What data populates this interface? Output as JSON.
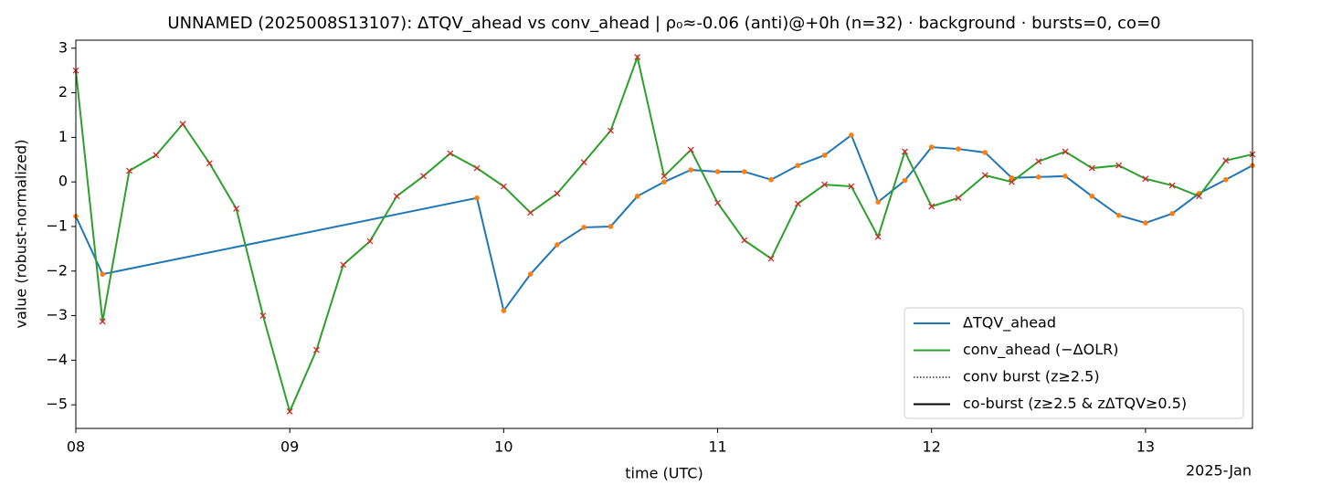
{
  "chart_data": {
    "type": "line",
    "title": "UNNAMED (2025008S13107): ΔTQV_ahead vs conv_ahead | ρ₀≈-0.06 (anti)@+0h (n=32) · background · bursts=0, co=0",
    "x_label": "time (UTC)",
    "y_label": "value (robust-normalized)",
    "x_offset_label": "2025-Jan",
    "xlim": [
      8,
      13.5
    ],
    "xticks": [
      {
        "value": 8,
        "label": "08"
      },
      {
        "value": 9,
        "label": "09"
      },
      {
        "value": 10,
        "label": "10"
      },
      {
        "value": 11,
        "label": "11"
      },
      {
        "value": 12,
        "label": "12"
      },
      {
        "value": 13,
        "label": "13"
      }
    ],
    "ylim": [
      -5.53,
      3.18
    ],
    "yticks": [
      {
        "value": -5,
        "label": "−5"
      },
      {
        "value": -4,
        "label": "−4"
      },
      {
        "value": -3,
        "label": "−3"
      },
      {
        "value": -2,
        "label": "−2"
      },
      {
        "value": -1,
        "label": "−1"
      },
      0,
      1,
      2,
      3
    ],
    "grid": false,
    "legend": "lower right",
    "series": [
      {
        "name": "ΔTQV_ahead",
        "color": "#1f77b4",
        "marker": "dot",
        "marker_color": "#ff7f0e",
        "x": [
          8.0,
          8.125,
          9.875,
          10.0,
          10.125,
          10.25,
          10.375,
          10.5,
          10.625,
          10.75,
          10.875,
          11.0,
          11.125,
          11.25,
          11.375,
          11.5,
          11.625,
          11.75,
          11.875,
          12.0,
          12.125,
          12.25,
          12.375,
          12.5,
          12.625,
          12.75,
          12.875,
          13.0,
          13.125,
          13.25,
          13.375,
          13.5
        ],
        "values": [
          -0.77,
          -2.07,
          -0.36,
          -2.89,
          -2.07,
          -1.41,
          -1.02,
          -1.0,
          -0.32,
          0,
          0.27,
          0.23,
          0.23,
          0.05,
          0.37,
          0.6,
          1.05,
          -0.45,
          0.03,
          0.78,
          0.74,
          0.66,
          0.09,
          0.11,
          0.13,
          -0.32,
          -0.75,
          -0.92,
          -0.71,
          -0.26,
          0.05,
          0.37
        ]
      },
      {
        "name": "conv_ahead (−ΔOLR)",
        "color": "#2ca02c",
        "marker": "x",
        "marker_color": "#d62728",
        "x": [
          8.0,
          8.125,
          8.25,
          8.375,
          8.5,
          8.625,
          8.75,
          8.875,
          9.0,
          9.125,
          9.25,
          9.375,
          9.5,
          9.625,
          9.75,
          9.875,
          10.0,
          10.125,
          10.25,
          10.375,
          10.5,
          10.625,
          10.75,
          10.875,
          11.0,
          11.125,
          11.25,
          11.375,
          11.5,
          11.625,
          11.75,
          11.875,
          12.0,
          12.125,
          12.25,
          12.375,
          12.5,
          12.625,
          12.75,
          12.875,
          13.0,
          13.125,
          13.25,
          13.375,
          13.5
        ],
        "values": [
          2.5,
          -3.13,
          0.25,
          0.6,
          1.3,
          0.42,
          -0.6,
          -3.0,
          -5.15,
          -3.77,
          -1.86,
          -1.33,
          -0.32,
          0.13,
          0.64,
          0.31,
          -0.1,
          -0.69,
          -0.26,
          0.44,
          1.15,
          2.8,
          0.13,
          0.72,
          -0.47,
          -1.31,
          -1.72,
          -0.49,
          -0.06,
          -0.1,
          -1.23,
          0.68,
          -0.55,
          -0.36,
          0.15,
          0,
          0.46,
          0.68,
          0.31,
          0.37,
          0.07,
          -0.08,
          -0.32,
          0.48,
          0.62
        ]
      },
      {
        "name": "conv burst (z≥2.5)",
        "color": "#000000",
        "dash": "dotted",
        "x": [],
        "values": []
      },
      {
        "name": "co-burst (z≥2.5 & zΔTQV≥0.5)",
        "color": "#000000",
        "dash": "solid",
        "x": [],
        "values": []
      }
    ]
  }
}
